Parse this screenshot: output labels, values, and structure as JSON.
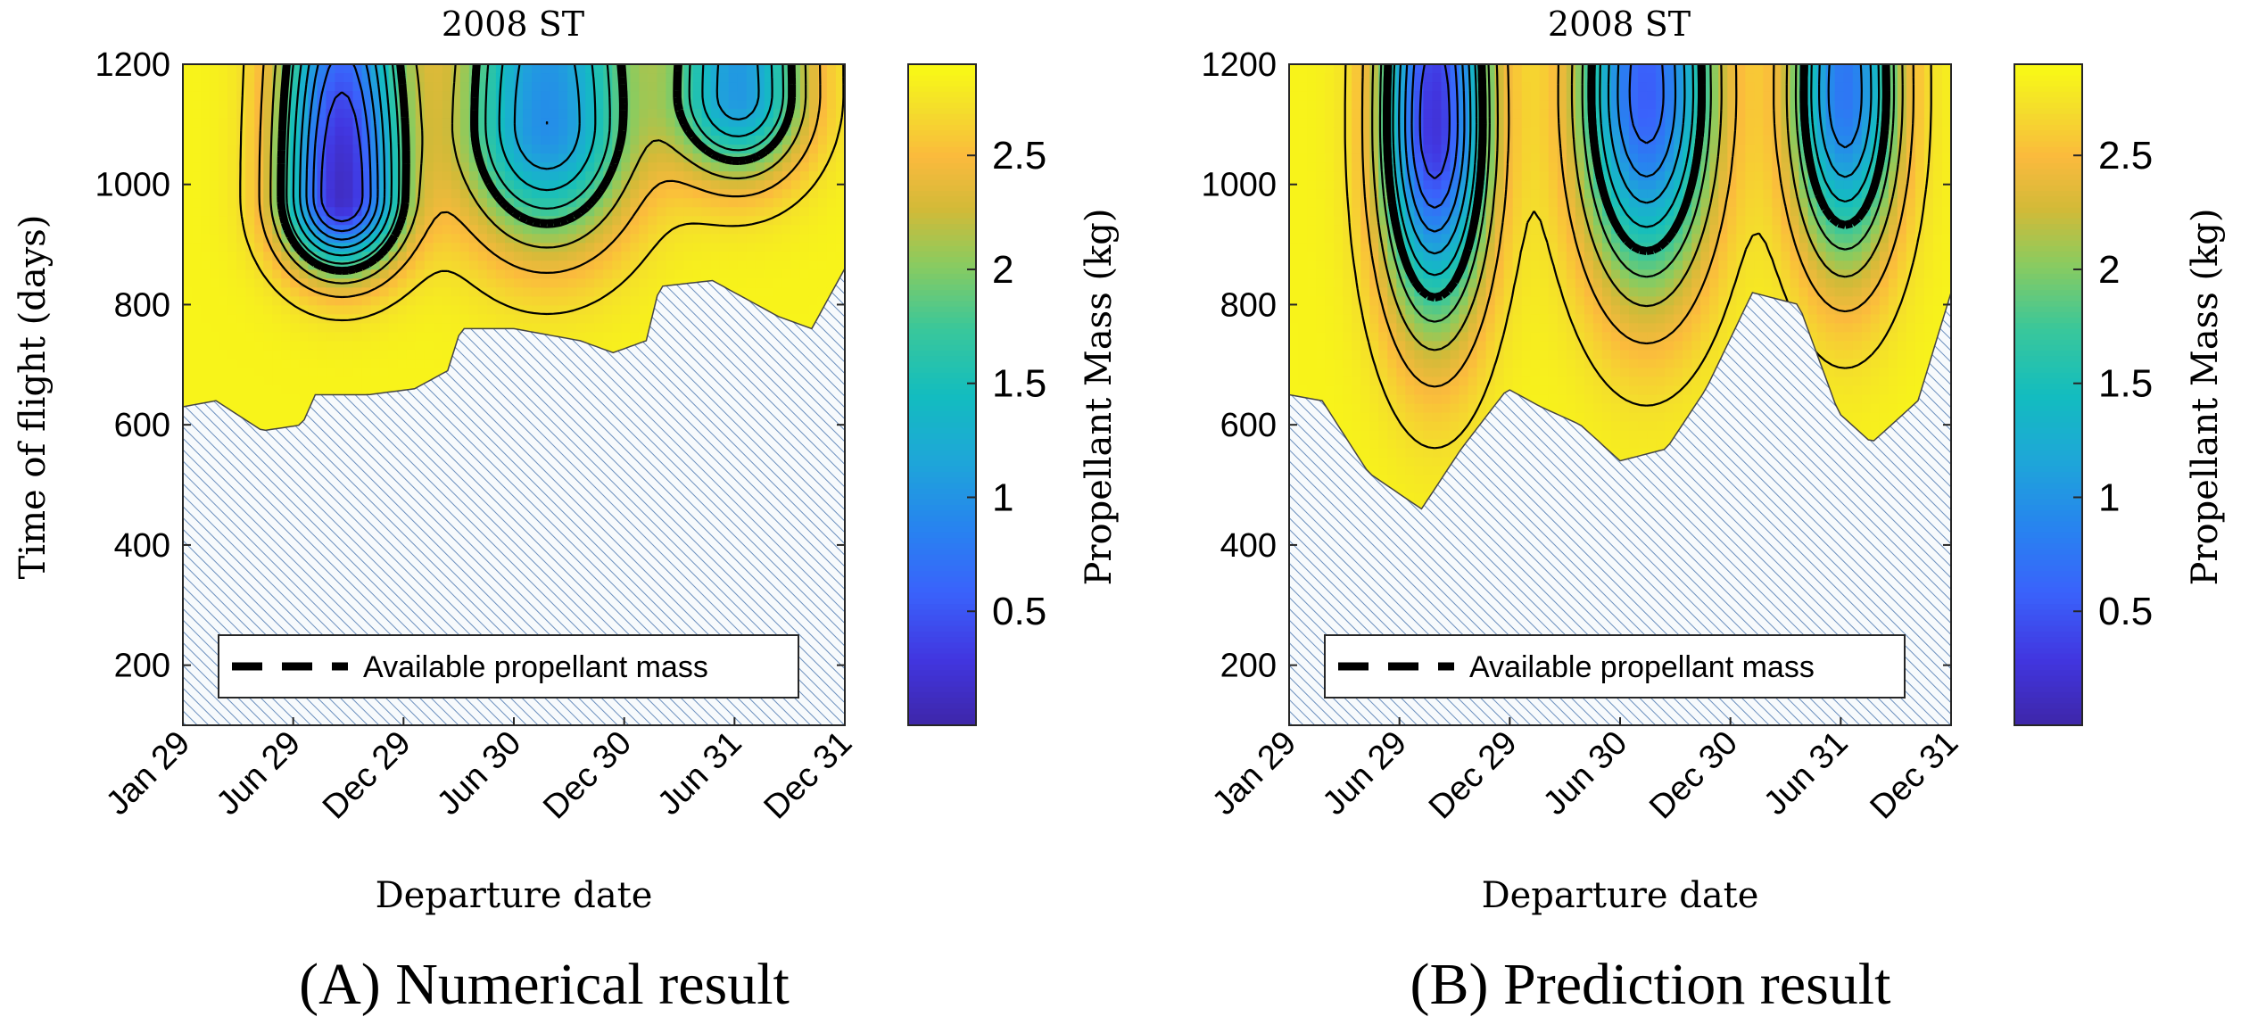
{
  "chart_data": [
    {
      "type": "contour",
      "title": "2008 ST",
      "caption": "(A) Numerical result",
      "xlabel": "Departure date",
      "ylabel": "Time of flight (days)",
      "x_ticks": [
        "Jan 29",
        "Jun 29",
        "Dec 29",
        "Jun 30",
        "Dec 30",
        "Jun 31",
        "Dec 31"
      ],
      "y_ticks": [
        200,
        400,
        600,
        800,
        1000,
        1200
      ],
      "ylim": [
        100,
        1200
      ],
      "colorbar": {
        "label": "Propellant Mass (kg)",
        "ticks": [
          "0.5",
          "1",
          "1.5",
          "2",
          "2.5"
        ],
        "range": [
          0,
          2.9
        ]
      },
      "legend": {
        "label": "Available propellant mass",
        "location": "bottom"
      },
      "infeasible_region": "hatched",
      "boundary": [
        [
          0,
          630
        ],
        [
          0.05,
          640
        ],
        [
          0.12,
          590
        ],
        [
          0.18,
          600
        ],
        [
          0.2,
          650
        ],
        [
          0.28,
          650
        ],
        [
          0.35,
          660
        ],
        [
          0.4,
          690
        ],
        [
          0.42,
          760
        ],
        [
          0.5,
          760
        ],
        [
          0.6,
          740
        ],
        [
          0.65,
          720
        ],
        [
          0.7,
          740
        ],
        [
          0.72,
          830
        ],
        [
          0.8,
          840
        ],
        [
          0.9,
          780
        ],
        [
          0.95,
          760
        ],
        [
          1,
          860
        ]
      ],
      "color_stops": [
        [
          0,
          "#3e26a8"
        ],
        [
          0.1,
          "#4136e0"
        ],
        [
          0.2,
          "#3a62fb"
        ],
        [
          0.3,
          "#2784ef"
        ],
        [
          0.4,
          "#1ea6d8"
        ],
        [
          0.5,
          "#13bdbf"
        ],
        [
          0.6,
          "#3ac79a"
        ],
        [
          0.7,
          "#8ccb5e"
        ],
        [
          0.78,
          "#d2ba38"
        ],
        [
          0.86,
          "#fbba3d"
        ],
        [
          0.93,
          "#f4dd2c"
        ],
        [
          1,
          "#f9fb14"
        ]
      ],
      "wells": [
        {
          "x": 0.24,
          "y": 980,
          "sx": 0.09,
          "stop": 760,
          "depth": 2.7
        },
        {
          "x": 0.55,
          "y": 1100,
          "sx": 0.13,
          "stop": 740,
          "depth": 1.9
        },
        {
          "x": 0.84,
          "y": 1150,
          "sx": 0.1,
          "stop": 900,
          "depth": 1.8
        }
      ],
      "dash_level": 1.9
    },
    {
      "type": "contour",
      "title": "2008 ST",
      "caption": "(B) Prediction result",
      "xlabel": "Departure date",
      "ylabel": "",
      "x_ticks": [
        "Jan 29",
        "Jun 29",
        "Dec 29",
        "Jun 30",
        "Dec 30",
        "Jun 31",
        "Dec 31"
      ],
      "y_ticks": [
        200,
        400,
        600,
        800,
        1000,
        1200
      ],
      "ylim": [
        100,
        1200
      ],
      "colorbar": {
        "label": "Propellant Mass (kg)",
        "ticks": [
          "0.5",
          "1",
          "1.5",
          "2",
          "2.5"
        ],
        "range": [
          0,
          2.9
        ]
      },
      "legend": {
        "label": "Available propellant mass",
        "location": "bottom"
      },
      "infeasible_region": "hatched",
      "boundary": [
        [
          0,
          650
        ],
        [
          0.05,
          640
        ],
        [
          0.12,
          520
        ],
        [
          0.2,
          460
        ],
        [
          0.26,
          560
        ],
        [
          0.33,
          660
        ],
        [
          0.38,
          630
        ],
        [
          0.44,
          600
        ],
        [
          0.5,
          540
        ],
        [
          0.57,
          560
        ],
        [
          0.63,
          660
        ],
        [
          0.7,
          820
        ],
        [
          0.77,
          800
        ],
        [
          0.83,
          620
        ],
        [
          0.88,
          570
        ],
        [
          0.95,
          640
        ],
        [
          1,
          820
        ]
      ],
      "color_stops": [
        [
          0,
          "#3e26a8"
        ],
        [
          0.1,
          "#4136e0"
        ],
        [
          0.2,
          "#3a62fb"
        ],
        [
          0.3,
          "#2784ef"
        ],
        [
          0.4,
          "#1ea6d8"
        ],
        [
          0.5,
          "#13bdbf"
        ],
        [
          0.6,
          "#3ac79a"
        ],
        [
          0.7,
          "#8ccb5e"
        ],
        [
          0.78,
          "#d2ba38"
        ],
        [
          0.86,
          "#fbba3d"
        ],
        [
          0.93,
          "#f4dd2c"
        ],
        [
          1,
          "#f9fb14"
        ]
      ],
      "wells": [
        {
          "x": 0.22,
          "y": 1100,
          "sx": 0.08,
          "stop": 520,
          "depth": 2.6
        },
        {
          "x": 0.54,
          "y": 1150,
          "sx": 0.1,
          "stop": 580,
          "depth": 2.3
        },
        {
          "x": 0.84,
          "y": 1150,
          "sx": 0.08,
          "stop": 640,
          "depth": 2.1
        }
      ],
      "dash_level": 1.7
    }
  ]
}
